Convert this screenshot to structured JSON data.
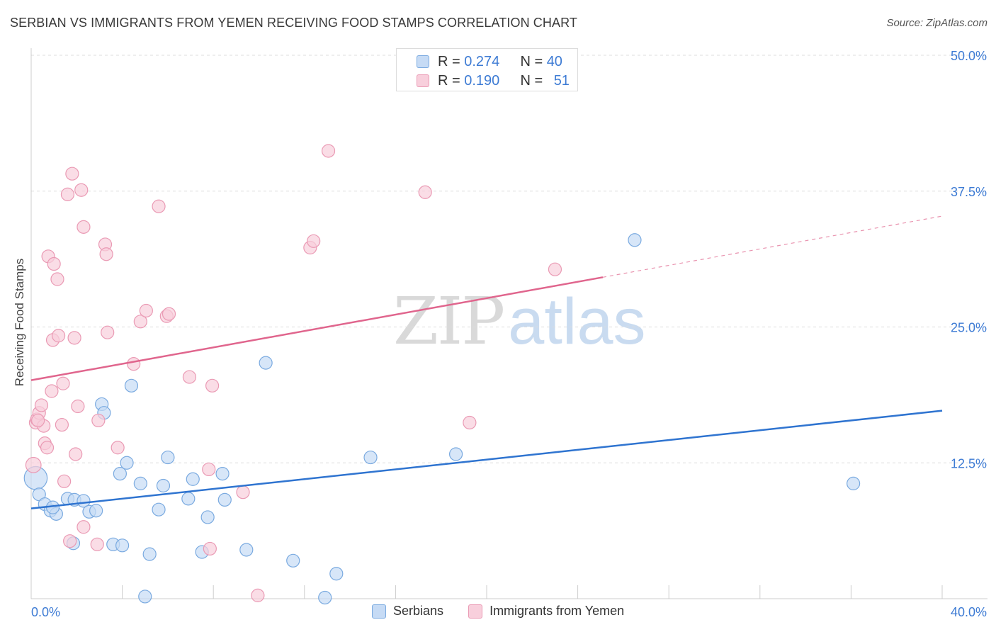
{
  "title": "SERBIAN VS IMMIGRANTS FROM YEMEN RECEIVING FOOD STAMPS CORRELATION CHART",
  "source": "Source: ZipAtlas.com",
  "watermark": {
    "zip": "ZIP",
    "atlas": "atlas"
  },
  "legend_top": [
    {
      "r_label": "R = ",
      "r_value": "0.274",
      "n_label": "N = ",
      "n_value": "40"
    },
    {
      "r_label": "R = ",
      "r_value": "0.190",
      "n_label": "N = ",
      "n_value": "51"
    }
  ],
  "legend_bottom": [
    "Serbians",
    "Immigrants from Yemen"
  ],
  "colors": {
    "serbian_fill": "#c6dbf5",
    "serbian_stroke": "#7aaae0",
    "serbian_line": "#2f74d0",
    "yemen_fill": "#f8cfdc",
    "yemen_stroke": "#ea9ab4",
    "yemen_line": "#e0658d",
    "grid": "#dddddd",
    "tick_label": "#3d7bd4"
  },
  "chart_data": {
    "type": "scatter",
    "title": "SERBIAN VS IMMIGRANTS FROM YEMEN RECEIVING FOOD STAMPS CORRELATION CHART",
    "xlabel": "",
    "ylabel": "Receiving Food Stamps",
    "xlim": [
      0,
      40
    ],
    "ylim": [
      0,
      50
    ],
    "x_tick_labels": [
      "0.0%",
      "40.0%"
    ],
    "y_ticks": [
      12.5,
      25.0,
      37.5,
      50.0
    ],
    "y_tick_labels": [
      "12.5%",
      "25.0%",
      "37.5%",
      "50.0%"
    ],
    "grid": true,
    "legend_position": "top-center",
    "series": [
      {
        "name": "Serbians",
        "R": 0.274,
        "N": 40,
        "trend": {
          "x": [
            0,
            40
          ],
          "y": [
            8.3,
            17.3
          ],
          "solid_to": 40
        },
        "points": [
          [
            0.2,
            11.1,
            1.8
          ],
          [
            0.35,
            9.6,
            1
          ],
          [
            0.6,
            8.7,
            1
          ],
          [
            0.85,
            8.1,
            1
          ],
          [
            1.1,
            7.8,
            1
          ],
          [
            0.95,
            8.4,
            1
          ],
          [
            1.6,
            9.2,
            1
          ],
          [
            1.9,
            9.1,
            1
          ],
          [
            2.3,
            9.0,
            1
          ],
          [
            2.55,
            8.0,
            1
          ],
          [
            2.85,
            8.1,
            1
          ],
          [
            1.85,
            5.1,
            1
          ],
          [
            3.1,
            17.9,
            1
          ],
          [
            3.2,
            17.1,
            1
          ],
          [
            3.6,
            5.0,
            1
          ],
          [
            4.0,
            4.9,
            1
          ],
          [
            3.9,
            11.5,
            1
          ],
          [
            4.2,
            12.5,
            1
          ],
          [
            4.4,
            19.6,
            1
          ],
          [
            4.8,
            10.6,
            1
          ],
          [
            5.0,
            0.2,
            1
          ],
          [
            5.2,
            4.1,
            1
          ],
          [
            5.6,
            8.2,
            1
          ],
          [
            5.8,
            10.4,
            1
          ],
          [
            6.0,
            13.0,
            1
          ],
          [
            6.9,
            9.2,
            1
          ],
          [
            7.1,
            11.0,
            1
          ],
          [
            7.5,
            4.3,
            1
          ],
          [
            7.75,
            7.5,
            1
          ],
          [
            8.4,
            11.5,
            1
          ],
          [
            8.5,
            9.1,
            1
          ],
          [
            9.45,
            4.5,
            1
          ],
          [
            10.3,
            21.7,
            1
          ],
          [
            11.5,
            3.5,
            1
          ],
          [
            12.9,
            0.1,
            1
          ],
          [
            13.4,
            2.3,
            1
          ],
          [
            14.9,
            13.0,
            1
          ],
          [
            18.65,
            13.3,
            1
          ],
          [
            26.5,
            33.0,
            1
          ],
          [
            36.1,
            10.6,
            1
          ]
        ]
      },
      {
        "name": "Immigrants from Yemen",
        "R": 0.19,
        "N": 51,
        "trend": {
          "x": [
            0,
            40
          ],
          "y": [
            20.1,
            35.2
          ],
          "solid_to": 25.1
        },
        "points": [
          [
            0.1,
            12.3,
            1.2
          ],
          [
            0.2,
            16.2,
            1
          ],
          [
            0.25,
            16.5,
            1
          ],
          [
            0.35,
            17.1,
            1
          ],
          [
            0.45,
            17.8,
            1
          ],
          [
            0.55,
            15.9,
            1
          ],
          [
            0.6,
            14.3,
            1
          ],
          [
            0.7,
            13.9,
            1
          ],
          [
            0.75,
            31.5,
            1
          ],
          [
            0.9,
            19.1,
            1
          ],
          [
            0.95,
            23.8,
            1
          ],
          [
            1.0,
            30.8,
            1
          ],
          [
            1.15,
            29.4,
            1
          ],
          [
            1.2,
            24.2,
            1
          ],
          [
            1.35,
            16.0,
            1
          ],
          [
            1.4,
            19.8,
            1
          ],
          [
            1.45,
            10.8,
            1
          ],
          [
            1.6,
            37.2,
            1
          ],
          [
            1.7,
            5.3,
            1
          ],
          [
            1.8,
            39.1,
            1
          ],
          [
            1.9,
            24.0,
            1
          ],
          [
            1.95,
            13.3,
            1
          ],
          [
            2.05,
            17.7,
            1
          ],
          [
            2.2,
            37.6,
            1
          ],
          [
            2.3,
            6.6,
            1
          ],
          [
            2.3,
            34.2,
            1
          ],
          [
            2.9,
            5.0,
            1
          ],
          [
            2.95,
            16.4,
            1
          ],
          [
            3.25,
            32.6,
            1
          ],
          [
            3.3,
            31.7,
            1
          ],
          [
            3.35,
            24.5,
            1
          ],
          [
            3.8,
            13.9,
            1
          ],
          [
            4.5,
            21.6,
            1
          ],
          [
            4.8,
            25.5,
            1
          ],
          [
            5.05,
            26.5,
            1
          ],
          [
            5.6,
            36.1,
            1
          ],
          [
            5.95,
            26.0,
            1
          ],
          [
            6.05,
            26.2,
            1
          ],
          [
            6.95,
            20.4,
            1
          ],
          [
            7.8,
            11.9,
            1
          ],
          [
            7.85,
            4.6,
            1
          ],
          [
            7.95,
            19.6,
            1
          ],
          [
            9.3,
            9.8,
            1
          ],
          [
            9.95,
            0.3,
            1
          ],
          [
            12.25,
            32.3,
            1
          ],
          [
            12.4,
            32.9,
            1
          ],
          [
            13.05,
            41.2,
            1
          ],
          [
            17.3,
            37.4,
            1
          ],
          [
            19.25,
            16.2,
            1
          ],
          [
            23.0,
            30.3,
            1
          ],
          [
            0.3,
            16.4,
            1
          ]
        ]
      }
    ]
  }
}
